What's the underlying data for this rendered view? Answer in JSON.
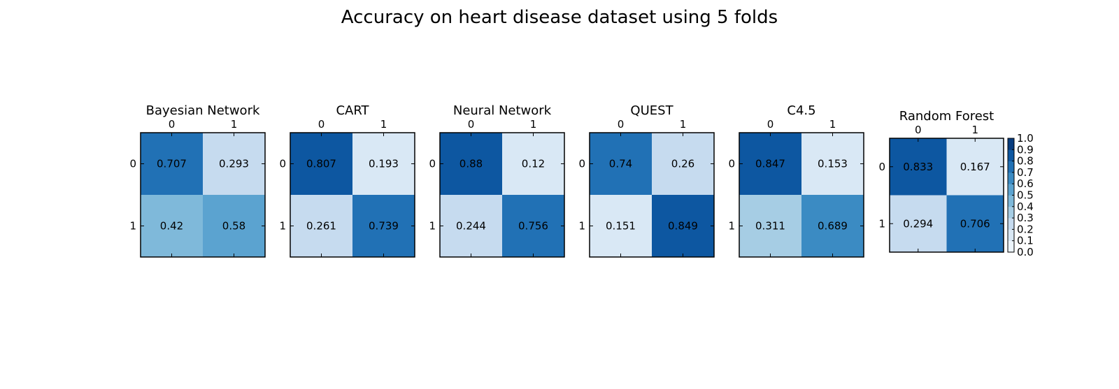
{
  "figure": {
    "title": "Accuracy on heart disease dataset using 5 folds"
  },
  "chart_data": [
    {
      "type": "heatmap",
      "title": "Bayesian Network",
      "x_ticks": [
        "0",
        "1"
      ],
      "y_ticks": [
        "0",
        "1"
      ],
      "values": [
        [
          0.707,
          0.293
        ],
        [
          0.42,
          0.58
        ]
      ],
      "labels": [
        [
          "0.707",
          "0.293"
        ],
        [
          "0.42",
          "0.58"
        ]
      ],
      "clim": [
        0,
        1
      ]
    },
    {
      "type": "heatmap",
      "title": "CART",
      "x_ticks": [
        "0",
        "1"
      ],
      "y_ticks": [
        "0",
        "1"
      ],
      "values": [
        [
          0.807,
          0.193
        ],
        [
          0.261,
          0.739
        ]
      ],
      "labels": [
        [
          "0.807",
          "0.193"
        ],
        [
          "0.261",
          "0.739"
        ]
      ],
      "clim": [
        0,
        1
      ]
    },
    {
      "type": "heatmap",
      "title": "Neural Network",
      "x_ticks": [
        "0",
        "1"
      ],
      "y_ticks": [
        "0",
        "1"
      ],
      "values": [
        [
          0.88,
          0.12
        ],
        [
          0.244,
          0.756
        ]
      ],
      "labels": [
        [
          "0.88",
          "0.12"
        ],
        [
          "0.244",
          "0.756"
        ]
      ],
      "clim": [
        0,
        1
      ]
    },
    {
      "type": "heatmap",
      "title": "QUEST",
      "x_ticks": [
        "0",
        "1"
      ],
      "y_ticks": [
        "0",
        "1"
      ],
      "values": [
        [
          0.74,
          0.26
        ],
        [
          0.151,
          0.849
        ]
      ],
      "labels": [
        [
          "0.74",
          "0.26"
        ],
        [
          "0.151",
          "0.849"
        ]
      ],
      "clim": [
        0,
        1
      ]
    },
    {
      "type": "heatmap",
      "title": "C4.5",
      "x_ticks": [
        "0",
        "1"
      ],
      "y_ticks": [
        "0",
        "1"
      ],
      "values": [
        [
          0.847,
          0.153
        ],
        [
          0.311,
          0.689
        ]
      ],
      "labels": [
        [
          "0.847",
          "0.153"
        ],
        [
          "0.311",
          "0.689"
        ]
      ],
      "clim": [
        0,
        1
      ]
    },
    {
      "type": "heatmap",
      "title": "Random Forest",
      "x_ticks": [
        "0",
        "1"
      ],
      "y_ticks": [
        "0",
        "1"
      ],
      "values": [
        [
          0.833,
          0.167
        ],
        [
          0.294,
          0.706
        ]
      ],
      "labels": [
        [
          "0.833",
          "0.167"
        ],
        [
          "0.294",
          "0.706"
        ]
      ],
      "clim": [
        0,
        1
      ]
    }
  ],
  "colorbar": {
    "colormap": "Blues",
    "range": [
      0,
      1
    ],
    "levels": 10,
    "tick_labels": [
      "0.0",
      "0.1",
      "0.2",
      "0.3",
      "0.4",
      "0.5",
      "0.6",
      "0.7",
      "0.8",
      "0.9",
      "1.0"
    ]
  }
}
